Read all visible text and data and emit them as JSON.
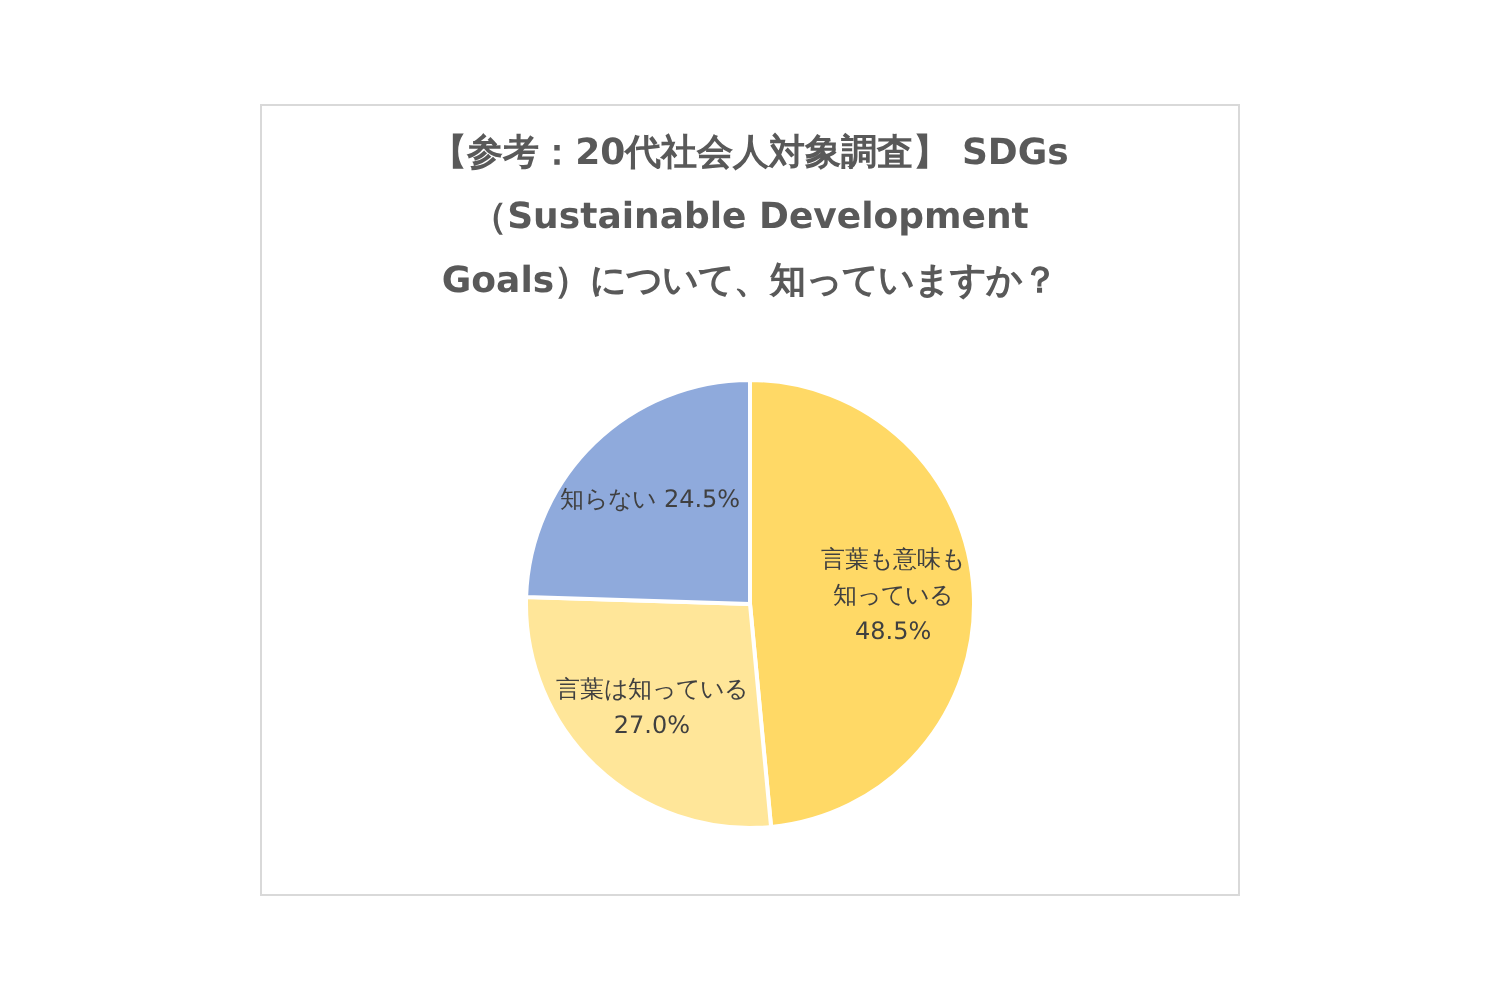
{
  "chart_data": {
    "type": "pie",
    "title": "【参考：20代社会人対象調査】 SDGs（Sustainable Development Goals）について、知っていますか？",
    "categories": [
      "言葉も意味も知っている",
      "言葉は知っている",
      "知らない"
    ],
    "values": [
      48.5,
      27.0,
      24.5
    ],
    "value_labels": [
      "48.5%",
      "27.0%",
      "24.5%"
    ],
    "colors": [
      "#ffd966",
      "#ffe699",
      "#8faadc"
    ],
    "legend": false
  }
}
